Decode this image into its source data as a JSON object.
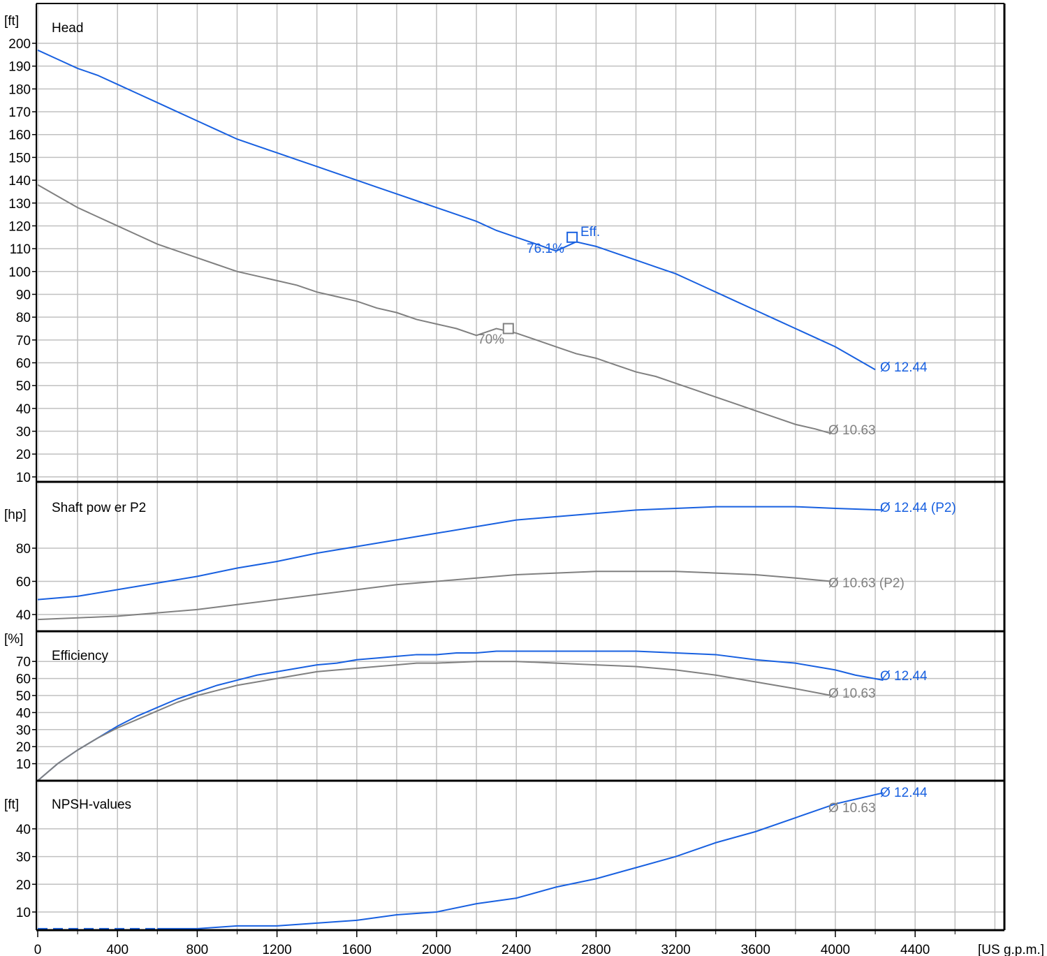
{
  "chart_data": {
    "type": "line",
    "colors": {
      "blue": "#1860e0",
      "gray": "#808080",
      "grid": "#c0c0c0",
      "frame": "#000000"
    },
    "x_axis": {
      "unit_label": "[US g.p.m.]",
      "range": [
        0,
        4700
      ],
      "ticks": [
        0,
        400,
        800,
        1200,
        1600,
        2000,
        2400,
        2800,
        3200,
        3600,
        4000,
        4400
      ]
    },
    "panels": [
      {
        "id": "head",
        "title": "Head",
        "unit_label": "[ft]",
        "ylim": [
          5,
          210
        ],
        "yticks": [
          10,
          20,
          30,
          40,
          50,
          60,
          70,
          80,
          90,
          100,
          110,
          120,
          130,
          140,
          150,
          160,
          170,
          180,
          190,
          200
        ],
        "series": [
          {
            "name": "Ø 12.44",
            "color": "blue",
            "points": [
              [
                0,
                197
              ],
              [
                100,
                193
              ],
              [
                200,
                189
              ],
              [
                300,
                186
              ],
              [
                400,
                182
              ],
              [
                500,
                178
              ],
              [
                600,
                174
              ],
              [
                700,
                170
              ],
              [
                800,
                166
              ],
              [
                900,
                162
              ],
              [
                1000,
                158
              ],
              [
                1100,
                155
              ],
              [
                1200,
                152
              ],
              [
                1300,
                149
              ],
              [
                1400,
                146
              ],
              [
                1500,
                143
              ],
              [
                1600,
                140
              ],
              [
                1700,
                137
              ],
              [
                1800,
                134
              ],
              [
                1900,
                131
              ],
              [
                2000,
                128
              ],
              [
                2100,
                125
              ],
              [
                2200,
                122
              ],
              [
                2300,
                118
              ],
              [
                2400,
                115
              ],
              [
                2500,
                112
              ],
              [
                2600,
                109
              ],
              [
                2700,
                113
              ],
              [
                2800,
                111
              ],
              [
                2900,
                108
              ],
              [
                3000,
                105
              ],
              [
                3100,
                102
              ],
              [
                3200,
                99
              ],
              [
                3300,
                95
              ],
              [
                3400,
                91
              ],
              [
                3500,
                87
              ],
              [
                3600,
                83
              ],
              [
                3700,
                79
              ],
              [
                3800,
                75
              ],
              [
                3900,
                71
              ],
              [
                4000,
                67
              ],
              [
                4100,
                62
              ],
              [
                4200,
                57
              ]
            ]
          },
          {
            "name": "Ø 10.63",
            "color": "gray",
            "points": [
              [
                0,
                138
              ],
              [
                100,
                133
              ],
              [
                200,
                128
              ],
              [
                300,
                124
              ],
              [
                400,
                120
              ],
              [
                500,
                116
              ],
              [
                600,
                112
              ],
              [
                700,
                109
              ],
              [
                800,
                106
              ],
              [
                900,
                103
              ],
              [
                1000,
                100
              ],
              [
                1100,
                98
              ],
              [
                1200,
                96
              ],
              [
                1300,
                94
              ],
              [
                1400,
                91
              ],
              [
                1500,
                89
              ],
              [
                1600,
                87
              ],
              [
                1700,
                84
              ],
              [
                1800,
                82
              ],
              [
                1900,
                79
              ],
              [
                2000,
                77
              ],
              [
                2100,
                75
              ],
              [
                2200,
                72
              ],
              [
                2300,
                75
              ],
              [
                2400,
                73
              ],
              [
                2500,
                70
              ],
              [
                2600,
                67
              ],
              [
                2700,
                64
              ],
              [
                2800,
                62
              ],
              [
                2900,
                59
              ],
              [
                3000,
                56
              ],
              [
                3100,
                54
              ],
              [
                3200,
                51
              ],
              [
                3300,
                48
              ],
              [
                3400,
                45
              ],
              [
                3500,
                42
              ],
              [
                3600,
                39
              ],
              [
                3700,
                36
              ],
              [
                3800,
                33
              ],
              [
                3900,
                31
              ],
              [
                3980,
                29
              ]
            ]
          }
        ],
        "annotations": [
          {
            "text": "Eff.",
            "color": "blue"
          },
          {
            "text": "76.1%",
            "color": "blue"
          },
          {
            "text": "70%",
            "color": "gray"
          },
          {
            "text": "Ø 12.44",
            "color": "blue"
          },
          {
            "text": "Ø 10.63",
            "color": "gray"
          }
        ],
        "markers": [
          {
            "x": 2680,
            "y": 115,
            "color": "blue"
          },
          {
            "x": 2360,
            "y": 75,
            "color": "gray"
          }
        ]
      },
      {
        "id": "power",
        "title": "Shaft pow er P2",
        "unit_label": "[hp]",
        "ylim": [
          36,
          112
        ],
        "yticks": [
          40,
          60,
          80
        ],
        "series": [
          {
            "name": "Ø 12.44 (P2)",
            "color": "blue",
            "points": [
              [
                0,
                49
              ],
              [
                200,
                51
              ],
              [
                400,
                55
              ],
              [
                600,
                59
              ],
              [
                800,
                63
              ],
              [
                1000,
                68
              ],
              [
                1200,
                72
              ],
              [
                1400,
                77
              ],
              [
                1600,
                81
              ],
              [
                1800,
                85
              ],
              [
                2000,
                89
              ],
              [
                2200,
                93
              ],
              [
                2400,
                97
              ],
              [
                2600,
                99
              ],
              [
                2800,
                101
              ],
              [
                3000,
                103
              ],
              [
                3200,
                104
              ],
              [
                3400,
                105
              ],
              [
                3600,
                105
              ],
              [
                3800,
                105
              ],
              [
                4000,
                104
              ],
              [
                4240,
                103
              ]
            ]
          },
          {
            "name": "Ø 10.63 (P2)",
            "color": "gray",
            "points": [
              [
                0,
                37
              ],
              [
                200,
                38
              ],
              [
                400,
                39
              ],
              [
                600,
                41
              ],
              [
                800,
                43
              ],
              [
                1000,
                46
              ],
              [
                1200,
                49
              ],
              [
                1400,
                52
              ],
              [
                1600,
                55
              ],
              [
                1800,
                58
              ],
              [
                2000,
                60
              ],
              [
                2200,
                62
              ],
              [
                2400,
                64
              ],
              [
                2600,
                65
              ],
              [
                2800,
                66
              ],
              [
                3000,
                66
              ],
              [
                3200,
                66
              ],
              [
                3400,
                65
              ],
              [
                3600,
                64
              ],
              [
                3800,
                62
              ],
              [
                3980,
                60
              ]
            ]
          }
        ],
        "annotations": [
          {
            "text": "Ø 12.44 (P2)",
            "color": "blue"
          },
          {
            "text": "Ø 10.63 (P2)",
            "color": "gray"
          }
        ]
      },
      {
        "id": "efficiency",
        "title": "Efficiency",
        "unit_label": "[%]",
        "ylim": [
          0,
          77
        ],
        "yticks": [
          10,
          20,
          30,
          40,
          50,
          60,
          70
        ],
        "series": [
          {
            "name": "Ø 12.44",
            "color": "blue",
            "points": [
              [
                0,
                0
              ],
              [
                100,
                10
              ],
              [
                200,
                18
              ],
              [
                300,
                25
              ],
              [
                400,
                32
              ],
              [
                500,
                38
              ],
              [
                600,
                43
              ],
              [
                700,
                48
              ],
              [
                800,
                52
              ],
              [
                900,
                56
              ],
              [
                1000,
                59
              ],
              [
                1100,
                62
              ],
              [
                1200,
                64
              ],
              [
                1300,
                66
              ],
              [
                1400,
                68
              ],
              [
                1500,
                69
              ],
              [
                1600,
                71
              ],
              [
                1700,
                72
              ],
              [
                1800,
                73
              ],
              [
                1900,
                74
              ],
              [
                2000,
                74
              ],
              [
                2100,
                75
              ],
              [
                2200,
                75
              ],
              [
                2300,
                76
              ],
              [
                2400,
                76
              ],
              [
                2600,
                76
              ],
              [
                2800,
                76
              ],
              [
                3000,
                76
              ],
              [
                3200,
                75
              ],
              [
                3400,
                74
              ],
              [
                3600,
                71
              ],
              [
                3800,
                69
              ],
              [
                4000,
                65
              ],
              [
                4100,
                62
              ],
              [
                4240,
                59
              ]
            ]
          },
          {
            "name": "Ø 10.63",
            "color": "gray",
            "points": [
              [
                0,
                0
              ],
              [
                100,
                10
              ],
              [
                200,
                18
              ],
              [
                300,
                25
              ],
              [
                400,
                31
              ],
              [
                500,
                36
              ],
              [
                600,
                41
              ],
              [
                700,
                46
              ],
              [
                800,
                50
              ],
              [
                900,
                53
              ],
              [
                1000,
                56
              ],
              [
                1100,
                58
              ],
              [
                1200,
                60
              ],
              [
                1300,
                62
              ],
              [
                1400,
                64
              ],
              [
                1500,
                65
              ],
              [
                1600,
                66
              ],
              [
                1700,
                67
              ],
              [
                1800,
                68
              ],
              [
                1900,
                69
              ],
              [
                2000,
                69
              ],
              [
                2200,
                70
              ],
              [
                2400,
                70
              ],
              [
                2600,
                69
              ],
              [
                2800,
                68
              ],
              [
                3000,
                67
              ],
              [
                3200,
                65
              ],
              [
                3400,
                62
              ],
              [
                3600,
                58
              ],
              [
                3800,
                54
              ],
              [
                3980,
                50
              ]
            ]
          }
        ],
        "annotations": [
          {
            "text": "Ø 12.44",
            "color": "blue"
          },
          {
            "text": "Ø 10.63",
            "color": "gray"
          }
        ]
      },
      {
        "id": "npsh",
        "title": "NPSH-values",
        "unit_label": "[ft]",
        "ylim": [
          2,
          56
        ],
        "yticks": [
          10,
          20,
          30,
          40
        ],
        "series": [
          {
            "name": "Ø 12.44",
            "color": "blue",
            "dashed_until": 600,
            "points": [
              [
                0,
                4
              ],
              [
                200,
                4
              ],
              [
                400,
                4
              ],
              [
                600,
                4
              ],
              [
                800,
                4
              ],
              [
                1000,
                5
              ],
              [
                1200,
                5
              ],
              [
                1400,
                6
              ],
              [
                1600,
                7
              ],
              [
                1800,
                9
              ],
              [
                2000,
                10
              ],
              [
                2200,
                13
              ],
              [
                2400,
                15
              ],
              [
                2600,
                19
              ],
              [
                2800,
                22
              ],
              [
                3000,
                26
              ],
              [
                3200,
                30
              ],
              [
                3400,
                35
              ],
              [
                3600,
                39
              ],
              [
                3800,
                44
              ],
              [
                4000,
                49
              ],
              [
                4240,
                53
              ]
            ]
          }
        ],
        "annotations": [
          {
            "text": "Ø 12.44",
            "color": "blue"
          },
          {
            "text": "Ø 10.63",
            "color": "gray"
          }
        ]
      }
    ]
  }
}
